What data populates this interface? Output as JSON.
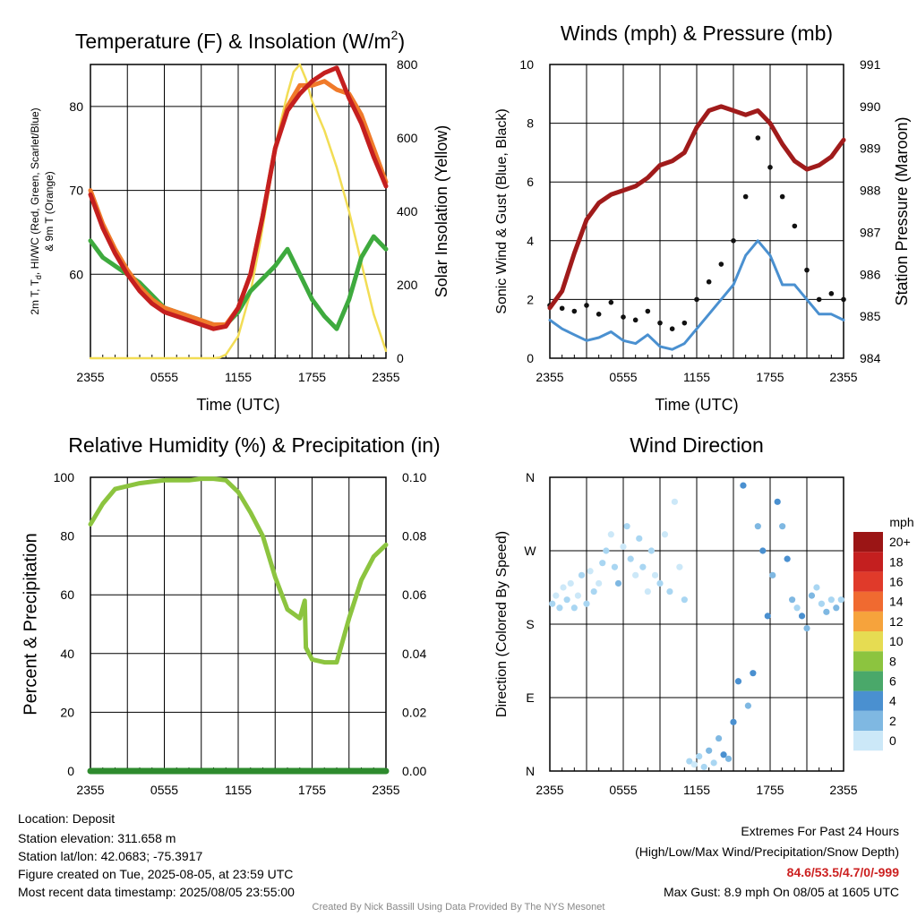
{
  "chart_data": [
    {
      "type": "line",
      "title": "Temperature (F) & Insolation (W/m",
      "title_sup": "2",
      "title_end": ")",
      "xlabel": "Time (UTC)",
      "ylabel_left_line1": "2m T, T",
      "ylabel_left_sub": "d",
      "ylabel_left_rest": ", HI/WC (Red, Green, Scarlet/Blue)",
      "ylabel_left_line2": "& 9m T (Orange)",
      "ylabel_right": "Solar Insolation (Yellow)",
      "x_ticks": [
        "2355",
        "0555",
        "1155",
        "1755",
        "2355"
      ],
      "ylim": [
        50,
        85
      ],
      "y_ticks": [
        60,
        70,
        80
      ],
      "y2lim": [
        0,
        800
      ],
      "y2_ticks": [
        0,
        200,
        400,
        600,
        800
      ],
      "series": [
        {
          "axis": "left",
          "color": "#f07a2a",
          "x": [
            0,
            1,
            2,
            3,
            4,
            5,
            6,
            7,
            8,
            9,
            10,
            11,
            12,
            13,
            14,
            15,
            16,
            17,
            18,
            19,
            20,
            21,
            22,
            23,
            24
          ],
          "values": [
            70,
            66,
            63,
            60.5,
            58.5,
            57,
            56,
            55.5,
            55,
            54.5,
            54,
            54,
            56,
            60,
            67,
            75,
            80,
            82.5,
            82.5,
            83,
            82,
            81.5,
            79,
            75,
            71
          ]
        },
        {
          "axis": "left",
          "color": "#c41f1f",
          "x": [
            0,
            1,
            2,
            3,
            4,
            5,
            6,
            7,
            8,
            9,
            10,
            11,
            12,
            13,
            14,
            15,
            16,
            17,
            18,
            19,
            20,
            21,
            22,
            23,
            24
          ],
          "values": [
            69.5,
            65.5,
            62.5,
            60,
            58,
            56.5,
            55.5,
            55,
            54.5,
            54,
            53.5,
            53.8,
            56,
            60,
            67,
            75,
            79.5,
            81.5,
            83,
            84,
            84.6,
            81,
            78,
            74,
            70.5
          ]
        },
        {
          "axis": "left",
          "color": "#3eaa3e",
          "x": [
            0,
            1,
            2,
            3,
            4,
            5,
            6,
            7,
            8,
            9,
            10,
            11,
            12,
            13,
            14,
            15,
            16,
            17,
            18,
            19,
            20,
            21,
            22,
            23,
            24
          ],
          "values": [
            64,
            62,
            61,
            60,
            59,
            57.5,
            56,
            55.5,
            55,
            54.5,
            54,
            54,
            55.5,
            58,
            59.5,
            61,
            63,
            60,
            57,
            55,
            53.5,
            57,
            62,
            64.5,
            63
          ]
        },
        {
          "axis": "right",
          "color": "#f2dd55",
          "x": [
            0,
            1,
            2,
            3,
            4,
            5,
            6,
            7,
            8,
            9,
            10,
            10.5,
            11,
            12,
            13,
            13.8,
            14.5,
            15,
            15.5,
            16,
            16.5,
            17,
            17.5,
            18,
            19,
            20,
            21,
            22,
            23,
            24
          ],
          "values": [
            0,
            0,
            0,
            0,
            0,
            0,
            0,
            0,
            0,
            0,
            0,
            2,
            10,
            60,
            180,
            320,
            460,
            570,
            650,
            720,
            780,
            800,
            760,
            700,
            620,
            520,
            400,
            260,
            120,
            20
          ]
        }
      ]
    },
    {
      "type": "scatter",
      "title": "Winds (mph) & Pressure (mb)",
      "xlabel": "Time (UTC)",
      "ylabel": "Sonic Wind & Gust (Blue, Black)",
      "ylabel_right": "Station Pressure (Maroon)",
      "x_ticks": [
        "2355",
        "0555",
        "1155",
        "1755",
        "2355"
      ],
      "ylim": [
        0,
        10
      ],
      "y_ticks": [
        0,
        2,
        4,
        6,
        8,
        10
      ],
      "y2lim": [
        984,
        991
      ],
      "y2_ticks": [
        984,
        985,
        986,
        987,
        988,
        989,
        990,
        991
      ],
      "series": [
        {
          "name": "Sonic Wind",
          "color": "#4a90d0",
          "x": [
            0,
            1,
            2,
            3,
            4,
            5,
            6,
            7,
            8,
            9,
            10,
            11,
            12,
            13,
            14,
            15,
            16,
            17,
            18,
            19,
            20,
            21,
            22,
            23,
            24
          ],
          "values": [
            1.3,
            1.0,
            0.8,
            0.6,
            0.7,
            0.9,
            0.6,
            0.5,
            0.8,
            0.4,
            0.3,
            0.5,
            1.0,
            1.5,
            2.0,
            2.5,
            3.5,
            4.0,
            3.5,
            2.5,
            2.5,
            2.0,
            1.5,
            1.5,
            1.3
          ]
        },
        {
          "name": "Gust",
          "color": "#111111",
          "x": [
            0,
            1,
            2,
            3,
            4,
            5,
            6,
            7,
            8,
            9,
            10,
            11,
            12,
            13,
            14,
            15,
            16,
            17,
            18,
            19,
            20,
            21,
            22,
            23,
            24
          ],
          "values": [
            1.8,
            1.7,
            1.6,
            1.8,
            1.5,
            1.9,
            1.4,
            1.3,
            1.6,
            1.2,
            1.0,
            1.2,
            2.0,
            2.6,
            3.2,
            4.0,
            5.5,
            7.5,
            6.5,
            5.5,
            4.5,
            3.0,
            2.0,
            2.2,
            2.0
          ]
        },
        {
          "name": "Station Pressure",
          "axis": "right",
          "color": "#a01b1b",
          "x": [
            0,
            1,
            2,
            3,
            4,
            5,
            6,
            7,
            8,
            9,
            10,
            11,
            12,
            13,
            14,
            15,
            16,
            17,
            18,
            19,
            20,
            21,
            22,
            23,
            24
          ],
          "values": [
            985.2,
            985.6,
            986.5,
            987.3,
            987.7,
            987.9,
            988.0,
            988.1,
            988.3,
            988.6,
            988.7,
            988.9,
            989.5,
            989.9,
            990.0,
            989.9,
            989.8,
            989.9,
            989.6,
            989.1,
            988.7,
            988.5,
            988.6,
            988.8,
            989.2
          ]
        }
      ]
    },
    {
      "type": "line",
      "title": "Relative Humidity (%) & Precipitation (in)",
      "ylabel": "Percent & Precipitation",
      "x_ticks": [
        "2355",
        "0555",
        "1155",
        "1755",
        "2355"
      ],
      "ylim": [
        0,
        100
      ],
      "y_ticks": [
        0,
        20,
        40,
        60,
        80,
        100
      ],
      "y2lim": [
        0,
        0.1
      ],
      "y2_ticks": [
        "0.00",
        "0.02",
        "0.04",
        "0.06",
        "0.08",
        "0.10"
      ],
      "series": [
        {
          "name": "Relative Humidity",
          "color": "#8cc43f",
          "x": [
            0,
            1,
            2,
            3,
            4,
            5,
            6,
            7,
            8,
            9,
            10,
            11,
            12,
            13,
            14,
            15,
            16,
            17,
            17.4,
            17.5,
            18,
            19,
            20,
            21,
            22,
            23,
            24
          ],
          "values": [
            84,
            91,
            96,
            97,
            98,
            98.5,
            99,
            99,
            99,
            99.5,
            99.5,
            99,
            95,
            88,
            80,
            66,
            55,
            52,
            58,
            42,
            38,
            37,
            37,
            52,
            65,
            73,
            77
          ]
        },
        {
          "name": "Precipitation",
          "color": "#2e8b2e",
          "x": [
            0,
            24
          ],
          "values": [
            0,
            0
          ]
        }
      ]
    },
    {
      "type": "scatter",
      "title": "Wind Direction",
      "ylabel": "Direction (Colored By Speed)",
      "x_ticks": [
        "2355",
        "0555",
        "1155",
        "1755",
        "2355"
      ],
      "y_ticks": [
        "N",
        "E",
        "S",
        "W",
        "N"
      ],
      "ylim": [
        0,
        360
      ],
      "colorbar": {
        "title": "mph",
        "labels": [
          "0",
          "2",
          "4",
          "6",
          "8",
          "10",
          "12",
          "14",
          "16",
          "18",
          "20+"
        ],
        "colors": [
          "#cce8f8",
          "#7fb8e2",
          "#4a90d0",
          "#4aa86a",
          "#8cc43f",
          "#e6dc52",
          "#f6a33c",
          "#f06a30",
          "#e03a2a",
          "#c41f1f",
          "#9b1515"
        ]
      },
      "series": [
        {
          "name": "Direction",
          "x": [
            0.2,
            0.5,
            0.8,
            1.1,
            1.4,
            1.7,
            2.0,
            2.3,
            2.6,
            3.0,
            3.3,
            3.6,
            4.0,
            4.3,
            4.6,
            5.0,
            5.3,
            5.6,
            6.0,
            6.3,
            6.6,
            7.0,
            7.3,
            7.6,
            8.0,
            8.3,
            8.6,
            9.0,
            9.4,
            9.8,
            10.2,
            10.6,
            11.0,
            11.4,
            11.8,
            12.2,
            12.6,
            13.0,
            13.4,
            13.8,
            14.2,
            14.6,
            15.0,
            15.4,
            15.8,
            16.2,
            16.6,
            17.0,
            17.4,
            17.8,
            18.2,
            18.6,
            19.0,
            19.4,
            19.8,
            20.2,
            20.6,
            21.0,
            21.4,
            21.8,
            22.2,
            22.6,
            23.0,
            23.4,
            23.8
          ],
          "values": [
            205,
            215,
            200,
            225,
            210,
            230,
            200,
            215,
            240,
            205,
            245,
            220,
            230,
            255,
            270,
            290,
            250,
            230,
            275,
            300,
            260,
            240,
            285,
            250,
            220,
            270,
            240,
            230,
            290,
            220,
            330,
            250,
            210,
            12,
            8,
            18,
            5,
            25,
            10,
            40,
            20,
            15,
            60,
            110,
            350,
            80,
            120,
            300,
            270,
            190,
            240,
            330,
            300,
            260,
            210,
            200,
            190,
            175,
            215,
            225,
            205,
            195,
            210,
            200,
            210
          ],
          "speeds": [
            1,
            0.5,
            1,
            0.5,
            1.5,
            0.5,
            1,
            0.5,
            1,
            1.5,
            0.5,
            1,
            0.5,
            1,
            1.5,
            0.5,
            1,
            2,
            0.5,
            1,
            1.5,
            0.5,
            1,
            1.5,
            0.5,
            1,
            0.5,
            1,
            0.5,
            1,
            0.5,
            0.5,
            1,
            1,
            0.5,
            1.5,
            1,
            2,
            1.5,
            2,
            3,
            2.5,
            3,
            3.5,
            3,
            2.5,
            3.5,
            2,
            4,
            3,
            2.5,
            3,
            2,
            3.5,
            2,
            1.5,
            3,
            2.5,
            2,
            1.5,
            1,
            2,
            1.5,
            2,
            1
          ]
        }
      ]
    }
  ],
  "footer": {
    "location": "Location: Deposit",
    "elevation": "Station elevation: 311.658 m",
    "latlon": "Station lat/lon: 42.0683; -75.3917",
    "created": "Figure created on Tue, 2025-08-05, at 23:59 UTC",
    "recent": "Most recent data timestamp: 2025/08/05 23:55:00",
    "extremes_title": "Extremes For Past 24 Hours",
    "extremes_legend": "(High/Low/Max Wind/Precipitation/Snow Depth)",
    "extremes_values": "84.6/53.5/4.7/0/-999",
    "max_gust": "Max Gust: 8.9 mph On 08/05 at 1605 UTC",
    "credit": "Created By Nick Bassill Using Data Provided By The NYS Mesonet"
  }
}
